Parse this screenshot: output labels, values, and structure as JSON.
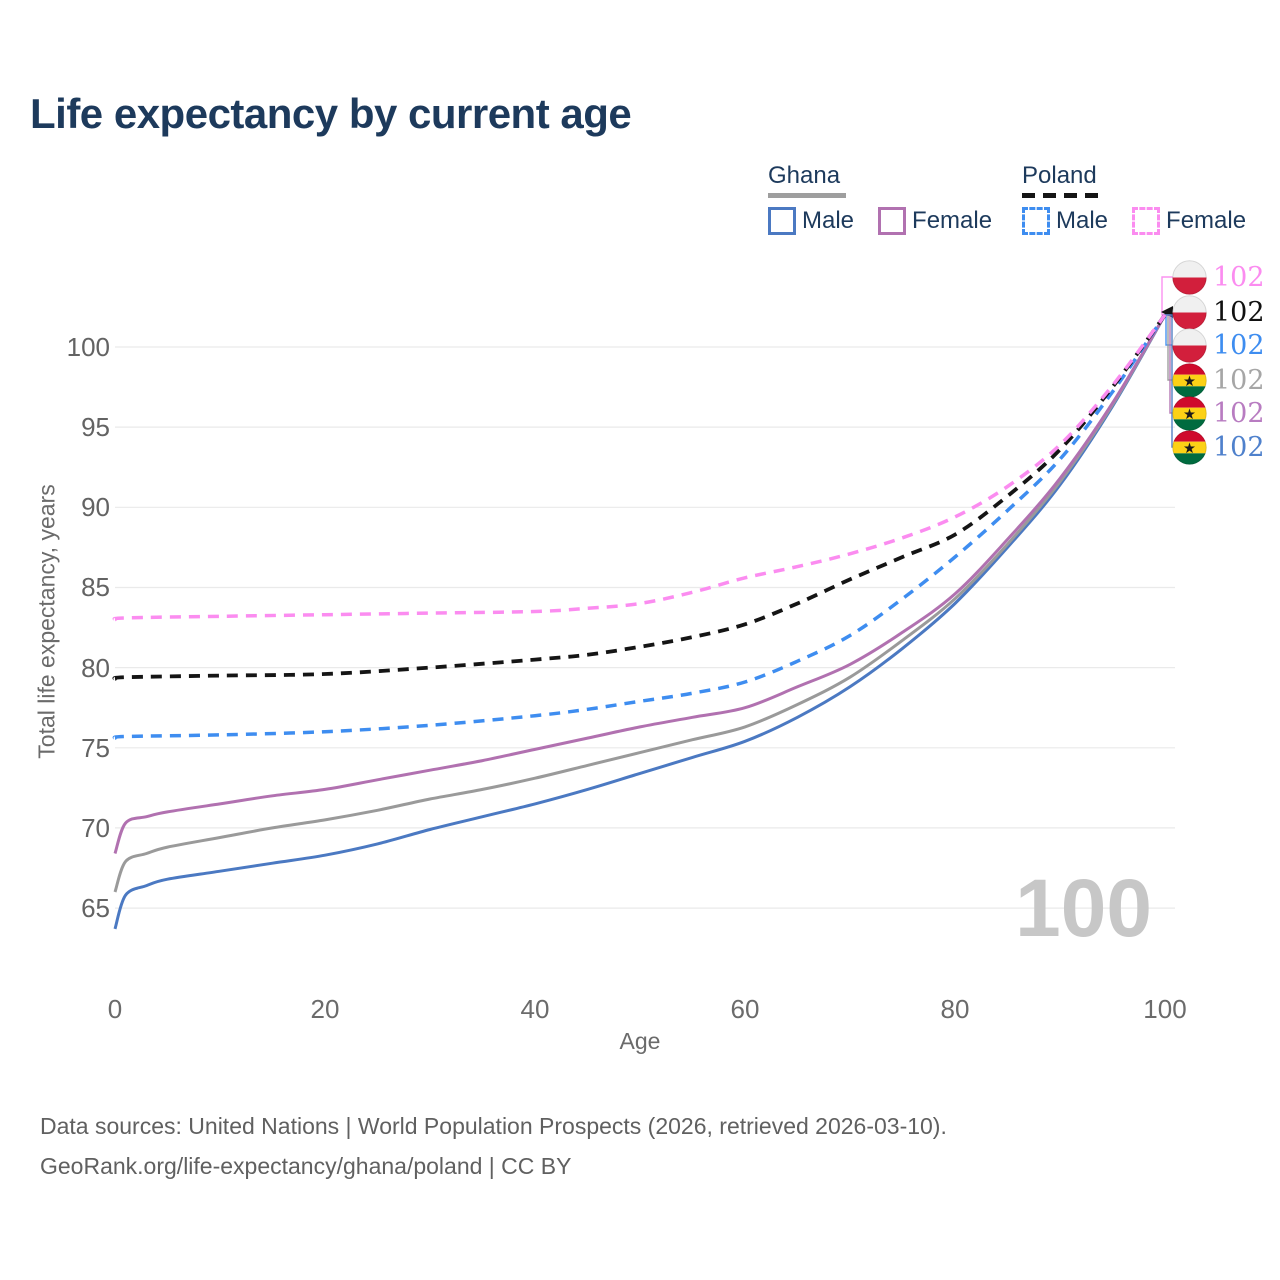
{
  "title": "Life expectancy by current age",
  "watermark": "100",
  "footer": {
    "line1": "Data sources: United Nations | World Population Prospects (2026, retrieved 2026-03-10).",
    "line2": "GeoRank.org/life-expectancy/ghana/poland | CC BY"
  },
  "colors": {
    "title_text": "#1d3a5c",
    "axis_text": "#6b6b6b",
    "grid": "#eaeaea",
    "watermark": "#c7c7c7",
    "footer_text": "#606060"
  },
  "legend": {
    "groups": [
      {
        "name": "Ghana",
        "underline_color": "#9e9e9e",
        "underline_style": "solid",
        "underline_width": 78,
        "items": [
          {
            "label": "Male",
            "color": "#4b79c2",
            "style": "solid"
          },
          {
            "label": "Female",
            "color": "#b171b0",
            "style": "solid"
          }
        ]
      },
      {
        "name": "Poland",
        "underline_color": "#151515",
        "underline_style": "dashed",
        "underline_width": 80,
        "items": [
          {
            "label": "Male",
            "color": "#3e8df0",
            "style": "dashed"
          },
          {
            "label": "Female",
            "color": "#fb8cf0",
            "style": "dashed"
          }
        ]
      }
    ]
  },
  "chart_data": {
    "type": "line",
    "title": "Life expectancy by current age",
    "xlabel": "Age",
    "ylabel": "Total life expectancy, years",
    "xlim": [
      0,
      100
    ],
    "ylim": [
      63,
      103
    ],
    "xticks": [
      0,
      20,
      40,
      60,
      80,
      100
    ],
    "yticks": [
      65,
      70,
      75,
      80,
      85,
      90,
      95,
      100
    ],
    "grid": "horizontal-only",
    "legend_position": "top-right",
    "series": [
      {
        "name": "Ghana Male",
        "country": "Ghana",
        "sex": "Male",
        "color": "#4b79c2",
        "dash": "solid",
        "width": 3,
        "points": [
          [
            0,
            63.7
          ],
          [
            1,
            65.8
          ],
          [
            3,
            66.4
          ],
          [
            5,
            66.8
          ],
          [
            10,
            67.3
          ],
          [
            15,
            67.8
          ],
          [
            20,
            68.3
          ],
          [
            25,
            69.0
          ],
          [
            30,
            69.9
          ],
          [
            35,
            70.7
          ],
          [
            40,
            71.5
          ],
          [
            45,
            72.4
          ],
          [
            50,
            73.4
          ],
          [
            55,
            74.4
          ],
          [
            60,
            75.4
          ],
          [
            65,
            76.9
          ],
          [
            70,
            78.8
          ],
          [
            75,
            81.2
          ],
          [
            80,
            84.0
          ],
          [
            85,
            87.5
          ],
          [
            90,
            91.4
          ],
          [
            95,
            96.3
          ],
          [
            100,
            102
          ]
        ]
      },
      {
        "name": "Ghana (both sexes)",
        "country": "Ghana",
        "sex": "Both",
        "color": "#9a9a9a",
        "dash": "solid",
        "width": 3,
        "points": [
          [
            0,
            66.0
          ],
          [
            1,
            67.9
          ],
          [
            3,
            68.4
          ],
          [
            5,
            68.8
          ],
          [
            10,
            69.4
          ],
          [
            15,
            70.0
          ],
          [
            20,
            70.5
          ],
          [
            25,
            71.1
          ],
          [
            30,
            71.8
          ],
          [
            35,
            72.4
          ],
          [
            40,
            73.1
          ],
          [
            45,
            73.9
          ],
          [
            50,
            74.7
          ],
          [
            55,
            75.5
          ],
          [
            60,
            76.3
          ],
          [
            65,
            77.7
          ],
          [
            70,
            79.4
          ],
          [
            75,
            81.7
          ],
          [
            80,
            84.3
          ],
          [
            85,
            87.7
          ],
          [
            90,
            91.6
          ],
          [
            95,
            96.4
          ],
          [
            100,
            102
          ]
        ]
      },
      {
        "name": "Ghana Female",
        "country": "Ghana",
        "sex": "Female",
        "color": "#b171b0",
        "dash": "solid",
        "width": 3,
        "points": [
          [
            0,
            68.4
          ],
          [
            1,
            70.3
          ],
          [
            3,
            70.7
          ],
          [
            5,
            71.0
          ],
          [
            10,
            71.5
          ],
          [
            15,
            72.0
          ],
          [
            20,
            72.4
          ],
          [
            25,
            73.0
          ],
          [
            30,
            73.6
          ],
          [
            35,
            74.2
          ],
          [
            40,
            74.9
          ],
          [
            45,
            75.6
          ],
          [
            50,
            76.3
          ],
          [
            55,
            76.9
          ],
          [
            60,
            77.5
          ],
          [
            65,
            78.8
          ],
          [
            70,
            80.2
          ],
          [
            75,
            82.2
          ],
          [
            80,
            84.6
          ],
          [
            85,
            88.0
          ],
          [
            90,
            91.8
          ],
          [
            95,
            96.5
          ],
          [
            100,
            102
          ]
        ]
      },
      {
        "name": "Poland Male",
        "country": "Poland",
        "sex": "Male",
        "color": "#3e8df0",
        "dash": "dashed",
        "width": 3.5,
        "points": [
          [
            0,
            75.6
          ],
          [
            1,
            75.7
          ],
          [
            10,
            75.8
          ],
          [
            20,
            76.0
          ],
          [
            30,
            76.4
          ],
          [
            40,
            77.0
          ],
          [
            45,
            77.4
          ],
          [
            50,
            77.9
          ],
          [
            55,
            78.4
          ],
          [
            60,
            79.1
          ],
          [
            65,
            80.4
          ],
          [
            70,
            82.0
          ],
          [
            75,
            84.3
          ],
          [
            80,
            86.9
          ],
          [
            85,
            89.8
          ],
          [
            90,
            93.0
          ],
          [
            95,
            97.2
          ],
          [
            100,
            102
          ]
        ]
      },
      {
        "name": "Poland (both sexes)",
        "country": "Poland",
        "sex": "Both",
        "color": "#151515",
        "dash": "dashed",
        "width": 3.8,
        "points": [
          [
            0,
            79.3
          ],
          [
            1,
            79.4
          ],
          [
            10,
            79.5
          ],
          [
            20,
            79.6
          ],
          [
            30,
            80.0
          ],
          [
            40,
            80.5
          ],
          [
            45,
            80.8
          ],
          [
            50,
            81.3
          ],
          [
            55,
            81.9
          ],
          [
            60,
            82.7
          ],
          [
            65,
            84.0
          ],
          [
            70,
            85.5
          ],
          [
            75,
            86.9
          ],
          [
            80,
            88.3
          ],
          [
            85,
            90.7
          ],
          [
            90,
            93.6
          ],
          [
            95,
            97.5
          ],
          [
            100,
            102
          ]
        ]
      },
      {
        "name": "Poland Female",
        "country": "Poland",
        "sex": "Female",
        "color": "#fb8cf0",
        "dash": "dashed",
        "width": 3.5,
        "points": [
          [
            0,
            83.0
          ],
          [
            1,
            83.1
          ],
          [
            10,
            83.2
          ],
          [
            20,
            83.3
          ],
          [
            30,
            83.4
          ],
          [
            40,
            83.5
          ],
          [
            45,
            83.7
          ],
          [
            50,
            84.0
          ],
          [
            55,
            84.7
          ],
          [
            60,
            85.6
          ],
          [
            65,
            86.3
          ],
          [
            70,
            87.1
          ],
          [
            75,
            88.1
          ],
          [
            80,
            89.4
          ],
          [
            85,
            91.3
          ],
          [
            90,
            93.9
          ],
          [
            95,
            97.6
          ],
          [
            100,
            102
          ]
        ]
      }
    ]
  },
  "end_labels": [
    {
      "series": "Poland Female",
      "flag": "poland",
      "value": "102",
      "color": "#fb8cf0"
    },
    {
      "series": "Poland (both sexes)",
      "flag": "poland",
      "value": "102",
      "color": "#111111"
    },
    {
      "series": "Poland Male",
      "flag": "poland",
      "value": "102",
      "color": "#3e8df0"
    },
    {
      "series": "Ghana (both sexes)",
      "flag": "ghana",
      "value": "102",
      "color": "#a6a6a6"
    },
    {
      "series": "Ghana Female",
      "flag": "ghana",
      "value": "102",
      "color": "#b87cc1"
    },
    {
      "series": "Ghana Male",
      "flag": "ghana",
      "value": "102",
      "color": "#4f81cc"
    }
  ],
  "flags": {
    "poland": {
      "top": "#f0f0f0",
      "bottom": "#d21f3c"
    },
    "ghana": {
      "stripes": [
        "#cf0a2c",
        "#fcd116",
        "#006b3f"
      ],
      "star": "#1a1a1a"
    }
  }
}
